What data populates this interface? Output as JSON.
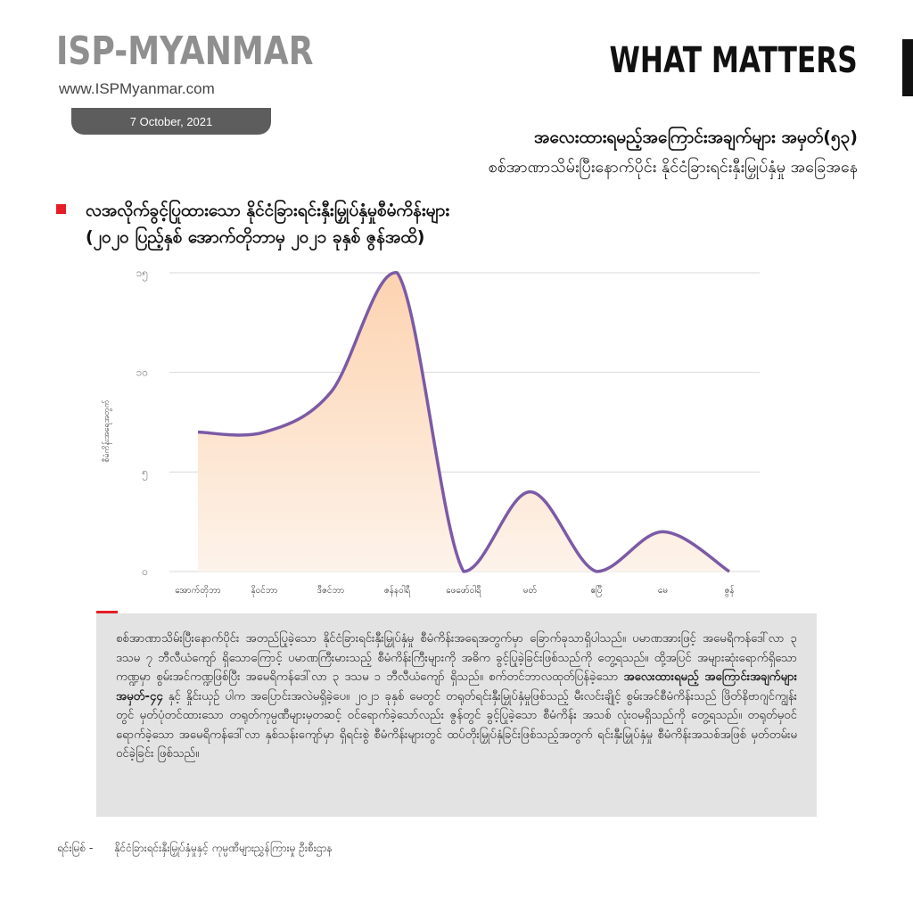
{
  "header": {
    "logo_text": "ISP-MYANMAR",
    "website": "www.ISPMyanmar.com",
    "date": "7 October, 2021",
    "brand": "WHAT MATTERS",
    "title": "အလေးထားရမည့်အကြောင်းအချက်များ အမှတ်(၅၃)",
    "subtitle": "စစ်အာဏာသိမ်းပြီးနောက်ပိုင်း နိုင်ငံခြားရင်းနှီးမြှုပ်နှံမှု အခြေအနေ"
  },
  "chart_data": {
    "type": "area",
    "title_line1": "လအလိုက်ခွင့်ပြုထားသော နိုင်ငံခြားရင်းနှီးမြှုပ်နှံမှုစီမံကိန်းများ",
    "title_line2": "(၂၀၂၀ ပြည့်နှစ် အောက်တိုဘာမှ ၂၀၂၁ ခုနှစ် ဇွန်အထိ)",
    "ylabel": "စီမံကိန်းအရေအတွက်",
    "ylim": [
      0,
      15
    ],
    "yticks": [
      {
        "value": 0,
        "label": "၀"
      },
      {
        "value": 5,
        "label": "၅"
      },
      {
        "value": 10,
        "label": "၁၀"
      },
      {
        "value": 15,
        "label": "၁၅"
      }
    ],
    "categories": [
      "အောက်တိုဘာ",
      "နိုဝင်ဘာ",
      "ဒီဇင်ဘာ",
      "ဇန်နဝါရီ",
      "ဖေဖော်ဝါရီ",
      "မတ်",
      "ဧပြီ",
      "မေ",
      "ဇွန်"
    ],
    "values": [
      7,
      7,
      9,
      15,
      0,
      4,
      0,
      2,
      0
    ],
    "line_color": "#7b5aa6",
    "fill_top_color": "#fdd3b0",
    "fill_bottom_color": "#fdf3ea",
    "grid": true
  },
  "note": {
    "part1": "စစ်အာဏာသိမ်းပြီးနောက်ပိုင်း အတည်ပြုခဲ့သော နိုင်ငံခြားရင်းနှီးမြှုပ်နှံမှု စီမံကိန်းအရေအတွက်မှာ ခြောက်ခုသာရှိပါသည်။ ပမာဏအားဖြင့် အမေရိကန်ဒေါ်လာ ၃ ဒသမ ၇ ဘီလီယံကျော် ရှိသောကြောင့် ပမာဏကြီးမားသည့် စီမံကိန်းကြီးများကို အဓိက ခွင့်ပြုခဲ့ခြင်းဖြစ်သည်ကို တွေ့ရသည်။ ထို့အပြင် အများဆုံးရောက်ရှိသောကဏ္ဍမှာ စွမ်းအင်ကဏ္ဍဖြစ်ပြီး အမေရိကန်ဒေါ်လာ ၃ ဒသမ ၁ ဘီလီယံကျော် ရှိသည်။ စက်တင်ဘာလထုတ်ပြန်ခဲ့သော ",
    "bold": "အလေးထားရမည့် အကြောင်းအချက်များ အမှတ်-၄၄",
    "part2": " နှင့် နှိုင်းယှဉ် ပါက အပြောင်းအလဲမရှိခဲ့ပေ။ ၂၀၂၁ ခုနှစ် မေတွင် တရုတ်ရင်းနှီးမြှုပ်နှံမှုဖြစ်သည့် မီးလင်းချိုင့် စွမ်းအင်စီမံကိန်းသည် ဖြိတ်နိဗာဂျင်ကျွန်းတွင် မှတ်ပုံတင်ထားသော တရုတ်ကုမ္ပဏီများမှတဆင့် ဝင်ရောက်ခဲ့သော်လည်း ဇွန်တွင် ခွင့်ပြုခဲ့သော စီမံကိန်း အသစ် လုံးဝမရှိသည်ကို တွေ့ရသည်။ တရုတ်မှဝင်ရောက်ခဲ့သော အမေရိကန်ဒေါ်လာ နှစ်သန်းကျော်မှာ ရှိရင်းစွဲ စီမံကိန်းများတွင် ထပ်တိုးမြှုပ်နှံခြင်းဖြစ်သည့်အတွက် ရင်းနှီးမြှုပ်နှံမှု စီမံကိန်းအသစ်အဖြစ် မှတ်တမ်းမဝင်ခဲ့ခြင်း ဖြစ်သည်။"
  },
  "source": {
    "label": "ရင်းမြစ် -",
    "text": "နိုင်ငံခြားရင်းနှီးမြှုပ်နှံမှုနှင့် ကုမ္ပဏီများညွှန်ကြားမှု ဦးစီးဌာန"
  }
}
